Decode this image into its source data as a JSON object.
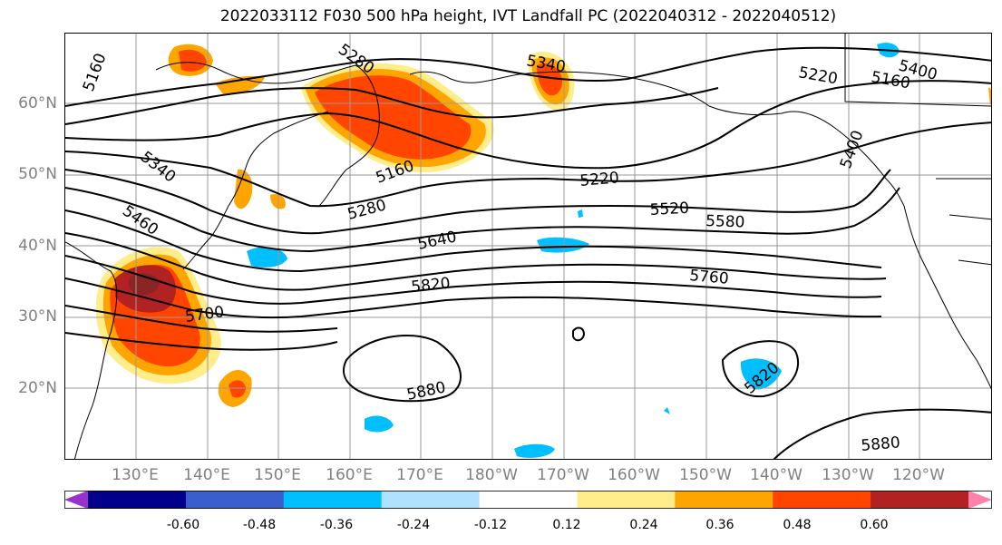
{
  "title": "2022033112 F030 500 hPa height, IVT Landfall PC (2022040312 - 2022040512)",
  "map": {
    "lat_labels": [
      "60°N",
      "50°N",
      "40°N",
      "30°N",
      "20°N"
    ],
    "lon_labels": [
      "130°E",
      "140°E",
      "150°E",
      "160°E",
      "170°E",
      "180°W",
      "170°W",
      "160°W",
      "150°W",
      "140°W",
      "130°W",
      "120°W"
    ],
    "contour_labels": [
      {
        "value": "5160"
      },
      {
        "value": "5280"
      },
      {
        "value": "5340"
      },
      {
        "value": "5220"
      },
      {
        "value": "5160"
      },
      {
        "value": "5400"
      },
      {
        "value": "5340"
      },
      {
        "value": "5460"
      },
      {
        "value": "5160"
      },
      {
        "value": "5220"
      },
      {
        "value": "5400"
      },
      {
        "value": "5280"
      },
      {
        "value": "5520"
      },
      {
        "value": "5580"
      },
      {
        "value": "5640"
      },
      {
        "value": "5760"
      },
      {
        "value": "5820"
      },
      {
        "value": "5700"
      },
      {
        "value": "5880"
      },
      {
        "value": "5820"
      },
      {
        "value": "5880"
      }
    ]
  },
  "colorbar": {
    "tick_labels": [
      "-0.60",
      "-0.48",
      "-0.36",
      "-0.24",
      "-0.12",
      "0.12",
      "0.24",
      "0.36",
      "0.48",
      "0.60"
    ],
    "colors": [
      "#9932CC",
      "#00008B",
      "#3A5FCD",
      "#00BFFF",
      "#B0E2FF",
      "#FFFFFF",
      "#FFEC8B",
      "#FFA500",
      "#FF4500",
      "#B22222",
      "#FF82AB"
    ]
  }
}
